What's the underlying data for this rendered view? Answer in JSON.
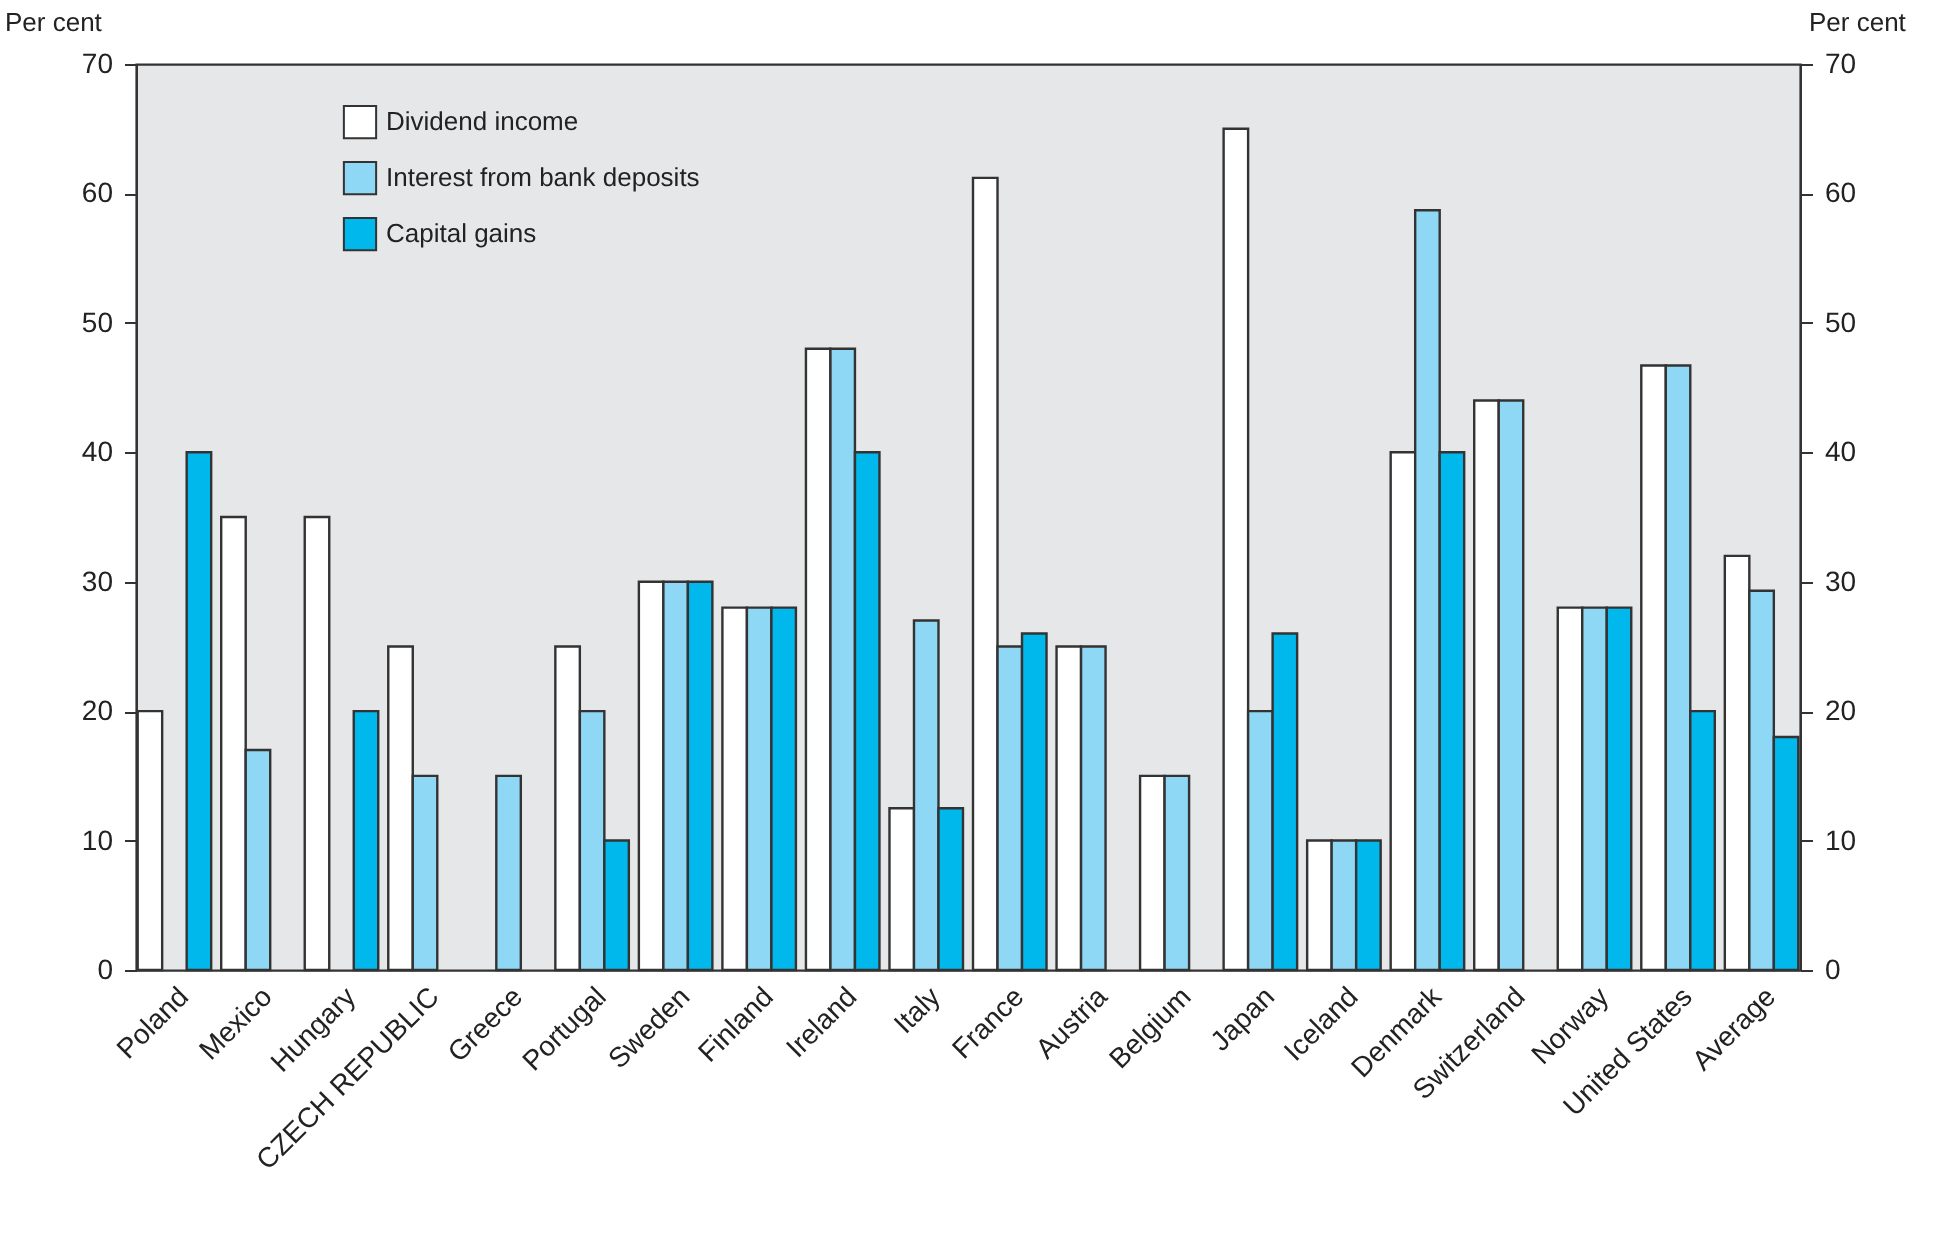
{
  "chart_data": {
    "type": "bar",
    "ylabel": "Per cent",
    "y2label": "Per cent",
    "categories": [
      "Poland",
      "Mexico",
      "Hungary",
      "CZECH REPUBLIC",
      "Greece",
      "Portugal",
      "Sweden",
      "Finland",
      "Ireland",
      "Italy",
      "France",
      "Austria",
      "Belgium",
      "Japan",
      "Iceland",
      "Denmark",
      "Switzerland",
      "Norway",
      "United States",
      "Average"
    ],
    "series": [
      {
        "name": "Dividend income",
        "color": "#ffffff",
        "values": [
          20,
          35,
          35,
          25,
          null,
          25,
          30,
          28,
          48,
          12.5,
          61.2,
          25,
          15,
          65,
          10,
          40,
          44,
          28,
          46.7,
          32
        ]
      },
      {
        "name": "Interest from bank deposits",
        "color": "#8fd8f5",
        "values": [
          null,
          17,
          null,
          15,
          15,
          20,
          30,
          28,
          48,
          27,
          25,
          25,
          15,
          20,
          10,
          58.7,
          44,
          28,
          46.7,
          29.3
        ]
      },
      {
        "name": "Capital gains",
        "color": "#00b8ec",
        "values": [
          40,
          null,
          20,
          null,
          null,
          10,
          30,
          28,
          40,
          12.5,
          26,
          null,
          null,
          26,
          10,
          40,
          null,
          28,
          20,
          18
        ]
      }
    ],
    "ylim": [
      0,
      70
    ],
    "yticks": [
      0,
      10,
      20,
      30,
      40,
      50,
      60,
      70
    ],
    "y2lim": [
      0,
      70
    ],
    "y2ticks": [
      0,
      10,
      20,
      30,
      40,
      50,
      60,
      70
    ],
    "legend": "top left",
    "grid": false
  }
}
